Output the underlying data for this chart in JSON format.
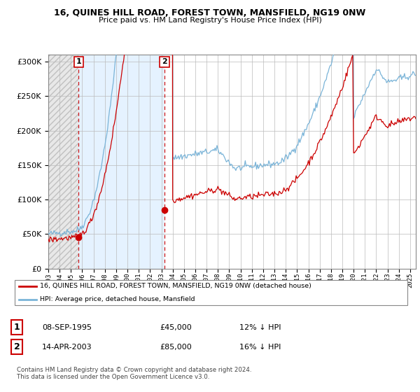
{
  "title1": "16, QUINES HILL ROAD, FOREST TOWN, MANSFIELD, NG19 0NW",
  "title2": "Price paid vs. HM Land Registry's House Price Index (HPI)",
  "legend_label1": "16, QUINES HILL ROAD, FOREST TOWN, MANSFIELD, NG19 0NW (detached house)",
  "legend_label2": "HPI: Average price, detached house, Mansfield",
  "sale1_date": "08-SEP-1995",
  "sale1_price": "£45,000",
  "sale1_hpi": "12% ↓ HPI",
  "sale2_date": "14-APR-2003",
  "sale2_price": "£85,000",
  "sale2_hpi": "16% ↓ HPI",
  "footer": "Contains HM Land Registry data © Crown copyright and database right 2024.\nThis data is licensed under the Open Government Licence v3.0.",
  "hpi_color": "#7ab4d8",
  "price_color": "#cc0000",
  "sale_marker_color": "#cc0000",
  "ylim": [
    0,
    310000
  ],
  "sale1_x": 1995.69,
  "sale1_y": 45000,
  "sale2_x": 2003.28,
  "sale2_y": 85000,
  "xmin": 1993.0,
  "xmax": 2025.5
}
